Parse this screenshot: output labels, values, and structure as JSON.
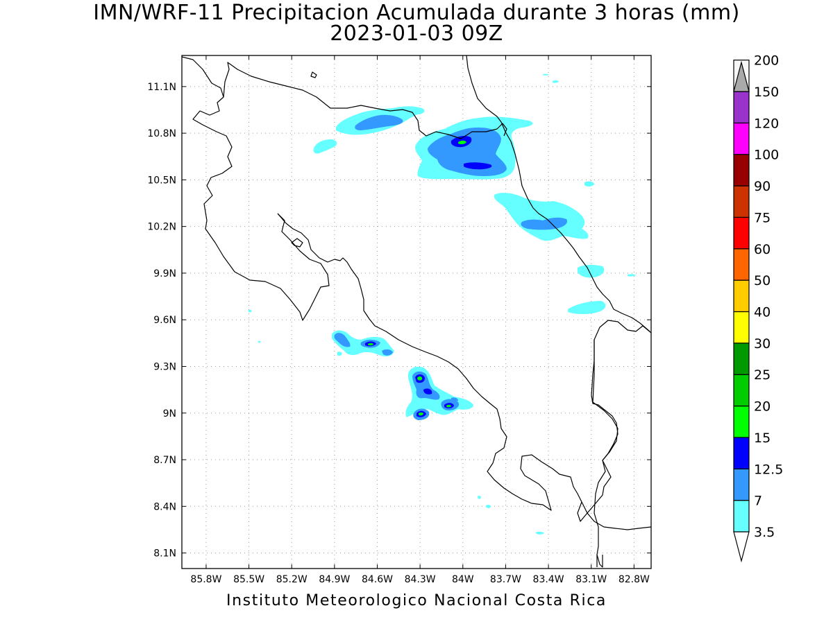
{
  "title": "IMN/WRF-11 Precipitacion Acumulada durante 3 horas (mm)",
  "subtitle": "2023-01-03 09Z",
  "footer": "Instituto Meteorologico Nacional Costa Rica",
  "map": {
    "lon_labels": [
      "85.8W",
      "85.5W",
      "85.2W",
      "84.9W",
      "84.6W",
      "84.3W",
      "84W",
      "83.7W",
      "83.4W",
      "83.1W",
      "82.8W"
    ],
    "lat_labels": [
      "11.1N",
      "10.8N",
      "10.5N",
      "10.2N",
      "9.9N",
      "9.6N",
      "9.3N",
      "9N",
      "8.7N",
      "8.4N",
      "8.1N"
    ],
    "lon_range": [
      -85.97,
      -82.68
    ],
    "lat_range": [
      8.0,
      11.3
    ],
    "grid": "dotted"
  },
  "colorbar": {
    "labels": [
      "3.5",
      "7",
      "12.5",
      "15",
      "20",
      "25",
      "30",
      "40",
      "50",
      "60",
      "75",
      "90",
      "100",
      "120",
      "150",
      "200"
    ],
    "colors": [
      "#66ffff",
      "#3399ff",
      "#0000ff",
      "#00ff00",
      "#00cc00",
      "#009900",
      "#ffff00",
      "#ffcc00",
      "#ff6600",
      "#ff0000",
      "#cc3300",
      "#990000",
      "#ff00ff",
      "#9933cc",
      "#f7f7f7",
      "#aaaaaa"
    ]
  }
}
